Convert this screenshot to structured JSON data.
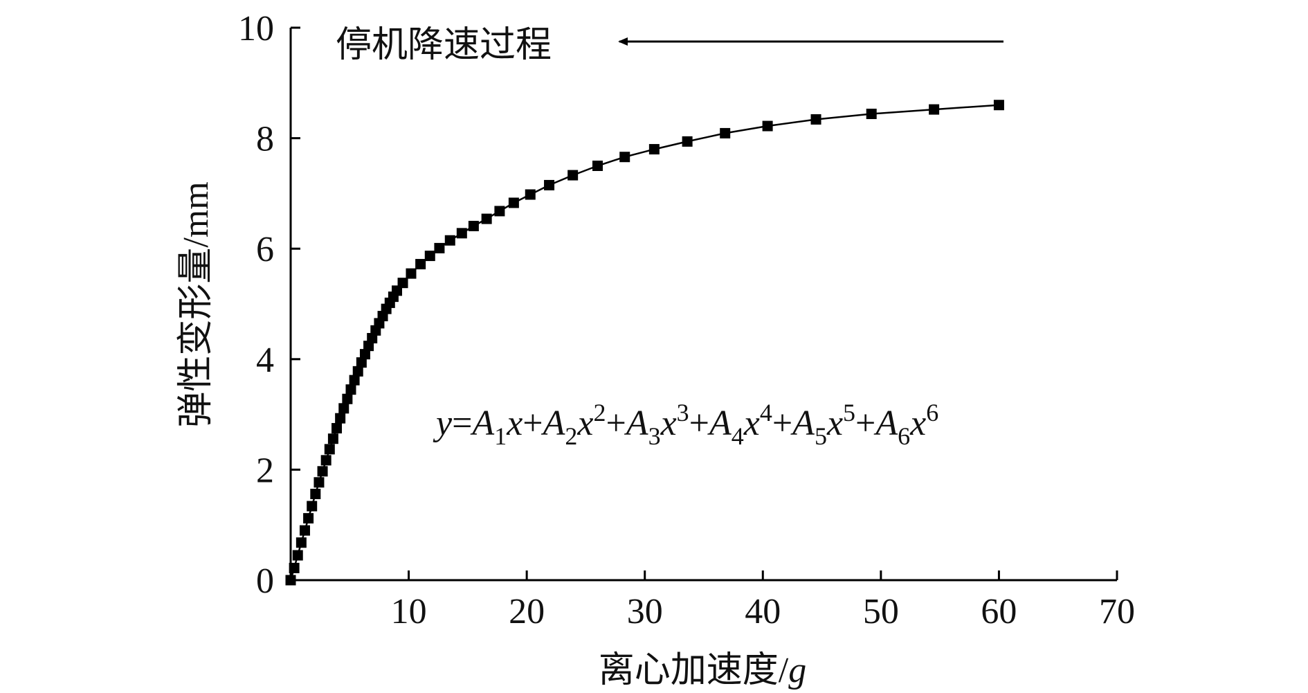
{
  "chart_data": {
    "type": "line",
    "title": "",
    "xlabel": "离心加速度/",
    "xlabel_italic": "g",
    "ylabel": "弹性变形量/mm",
    "xlim": [
      0,
      70
    ],
    "ylim": [
      0,
      10
    ],
    "xticks": [
      10,
      20,
      30,
      40,
      50,
      60,
      70
    ],
    "xtick_labels": [
      "10",
      "20",
      "30",
      "40",
      "50",
      "60",
      "70"
    ],
    "yticks": [
      0,
      2,
      4,
      6,
      8,
      10
    ],
    "ytick_labels": [
      "0",
      "2",
      "4",
      "6",
      "8",
      "10"
    ],
    "grid": false,
    "legend": "none",
    "annotation": "停机降速过程",
    "formula": {
      "lhs": "y",
      "eq": "=",
      "terms": [
        {
          "coef": "A",
          "sub": "1",
          "var": "x",
          "pow": ""
        },
        {
          "coef": "A",
          "sub": "2",
          "var": "x",
          "pow": "2"
        },
        {
          "coef": "A",
          "sub": "3",
          "var": "x",
          "pow": "3"
        },
        {
          "coef": "A",
          "sub": "4",
          "var": "x",
          "pow": "4"
        },
        {
          "coef": "A",
          "sub": "5",
          "var": "x",
          "pow": "5"
        },
        {
          "coef": "A",
          "sub": "6",
          "var": "x",
          "pow": "6"
        }
      ],
      "plus": "+"
    },
    "colors": {
      "series": "#000000",
      "axis": "#000000"
    },
    "series": [
      {
        "marker": "square",
        "x": [
          0.0,
          0.3,
          0.6,
          0.9,
          1.2,
          1.5,
          1.8,
          2.1,
          2.4,
          2.7,
          3.0,
          3.3,
          3.6,
          3.9,
          4.2,
          4.5,
          4.8,
          5.1,
          5.4,
          5.7,
          6.0,
          6.3,
          6.6,
          6.9,
          7.2,
          7.5,
          7.8,
          8.1,
          8.4,
          8.7,
          9.0,
          9.5,
          10.2,
          11.0,
          11.8,
          12.6,
          13.5,
          14.5,
          15.5,
          16.6,
          17.7,
          18.9,
          20.3,
          21.9,
          23.9,
          26.0,
          28.3,
          30.8,
          33.6,
          36.8,
          40.4,
          44.5,
          49.2,
          54.5,
          60.0
        ],
        "y": [
          0.0,
          0.22,
          0.45,
          0.68,
          0.9,
          1.12,
          1.34,
          1.56,
          1.77,
          1.97,
          2.17,
          2.37,
          2.56,
          2.75,
          2.93,
          3.11,
          3.28,
          3.45,
          3.62,
          3.78,
          3.94,
          4.09,
          4.24,
          4.38,
          4.52,
          4.65,
          4.78,
          4.91,
          5.02,
          5.13,
          5.24,
          5.38,
          5.55,
          5.72,
          5.87,
          6.01,
          6.15,
          6.28,
          6.41,
          6.54,
          6.68,
          6.83,
          6.98,
          7.15,
          7.33,
          7.5,
          7.66,
          7.8,
          7.94,
          8.09,
          8.22,
          8.34,
          8.44,
          8.52,
          8.6
        ]
      }
    ]
  }
}
